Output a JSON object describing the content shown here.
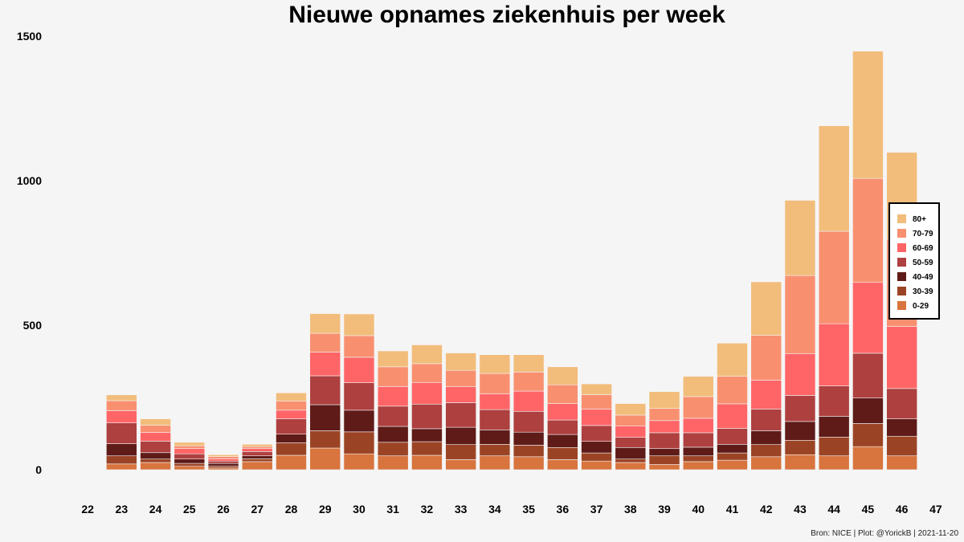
{
  "chart_data": {
    "type": "bar",
    "stacked": true,
    "title": "Nieuwe opnames ziekenhuis per week",
    "caption": "Bron: NICE | Plot: @YorickB |  2021-11-20",
    "xlabel": "",
    "ylabel": "",
    "categories": [
      "22",
      "23",
      "24",
      "25",
      "26",
      "27",
      "28",
      "29",
      "30",
      "31",
      "32",
      "33",
      "34",
      "35",
      "36",
      "37",
      "38",
      "39",
      "40",
      "41",
      "42",
      "43",
      "44",
      "45",
      "46",
      "47"
    ],
    "ylim": [
      0,
      1500
    ],
    "yticks": [
      0,
      500,
      1000,
      1500
    ],
    "grid": false,
    "legend_position": "right",
    "series": [
      {
        "name": "0-29",
        "color": "#d8743e",
        "values": [
          0,
          20,
          25,
          12,
          6,
          28,
          50,
          75,
          55,
          48,
          50,
          35,
          48,
          45,
          35,
          30,
          25,
          18,
          28,
          33,
          45,
          52,
          48,
          80,
          48,
          0
        ]
      },
      {
        "name": "30-39",
        "color": "#9b4425",
        "values": [
          0,
          28,
          12,
          10,
          6,
          10,
          43,
          60,
          76,
          47,
          47,
          52,
          40,
          40,
          42,
          28,
          12,
          30,
          20,
          25,
          42,
          50,
          65,
          80,
          68,
          0
        ]
      },
      {
        "name": "40-49",
        "color": "#5e1b18",
        "values": [
          0,
          42,
          22,
          15,
          10,
          10,
          30,
          90,
          75,
          55,
          45,
          60,
          50,
          45,
          45,
          40,
          40,
          25,
          30,
          30,
          48,
          65,
          72,
          88,
          60,
          0
        ]
      },
      {
        "name": "50-59",
        "color": "#ae4040",
        "values": [
          0,
          72,
          40,
          18,
          8,
          15,
          53,
          100,
          95,
          70,
          85,
          85,
          70,
          72,
          50,
          55,
          35,
          55,
          50,
          55,
          75,
          90,
          105,
          155,
          105,
          0
        ]
      },
      {
        "name": "60-69",
        "color": "#ff6567",
        "values": [
          0,
          42,
          30,
          18,
          8,
          10,
          30,
          82,
          88,
          68,
          75,
          55,
          55,
          70,
          57,
          57,
          40,
          42,
          50,
          85,
          100,
          145,
          215,
          245,
          215,
          0
        ]
      },
      {
        "name": "70-79",
        "color": "#f89070",
        "values": [
          0,
          35,
          25,
          10,
          8,
          7,
          32,
          65,
          75,
          68,
          65,
          57,
          70,
          66,
          65,
          50,
          37,
          42,
          75,
          95,
          155,
          270,
          320,
          360,
          302,
          0
        ]
      },
      {
        "name": "80+",
        "color": "#f2bd7b",
        "values": [
          0,
          20,
          22,
          12,
          6,
          8,
          28,
          68,
          75,
          55,
          65,
          60,
          65,
          60,
          62,
          37,
          40,
          58,
          70,
          115,
          185,
          260,
          365,
          440,
          300,
          0
        ]
      }
    ]
  }
}
